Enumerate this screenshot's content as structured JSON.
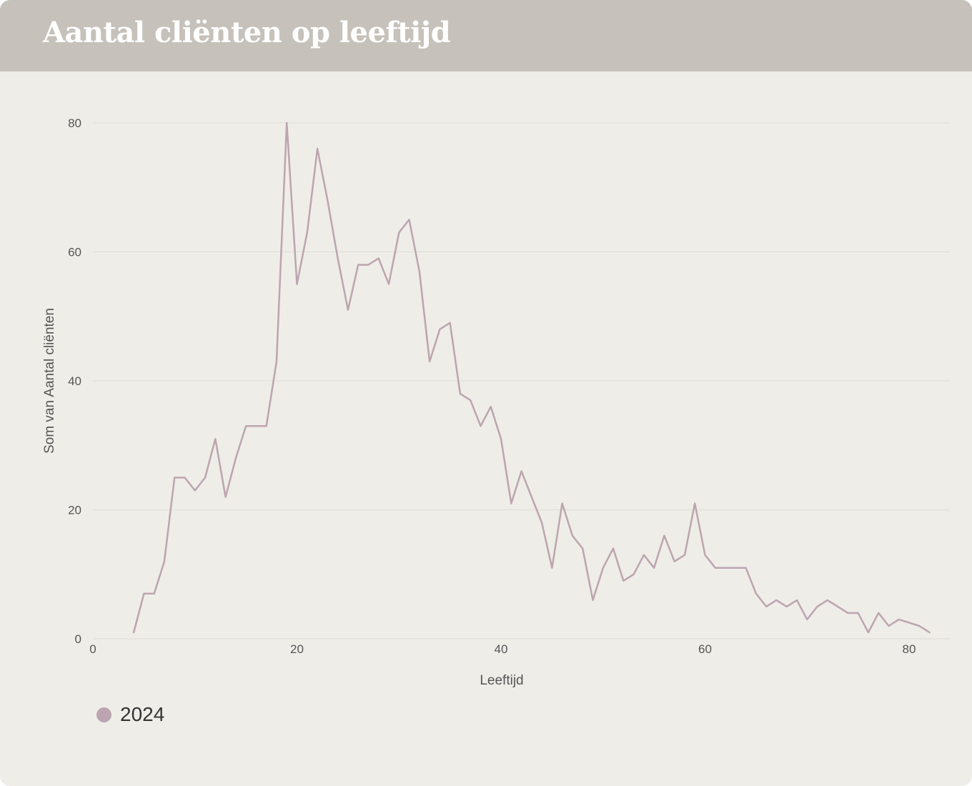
{
  "header": {
    "title": "Aantal cliënten op leeftijd"
  },
  "colors": {
    "header_bg": "#c6c1ba",
    "card_bg": "#efede8",
    "series": "#bca5b0",
    "grid": "#dedbd6",
    "axis_text": "#555555"
  },
  "chart_data": {
    "type": "line",
    "title": "",
    "xlabel": "Leeftijd",
    "ylabel": "Som van Aantal cliënten",
    "xlim": [
      0,
      84
    ],
    "ylim": [
      0,
      80
    ],
    "x_ticks": [
      0,
      20,
      40,
      60,
      80
    ],
    "y_ticks": [
      0,
      20,
      40,
      60,
      80
    ],
    "grid": "horizontal",
    "legend_position": "bottom-left",
    "series": [
      {
        "name": "2024",
        "x": [
          4,
          5,
          6,
          7,
          8,
          9,
          10,
          11,
          12,
          13,
          14,
          15,
          16,
          17,
          18,
          19,
          20,
          21,
          22,
          23,
          24,
          25,
          26,
          27,
          28,
          29,
          30,
          31,
          32,
          33,
          34,
          35,
          36,
          37,
          38,
          39,
          40,
          41,
          42,
          43,
          44,
          45,
          46,
          47,
          48,
          49,
          50,
          51,
          52,
          53,
          54,
          55,
          56,
          57,
          58,
          59,
          60,
          61,
          62,
          63,
          64,
          65,
          66,
          67,
          68,
          69,
          70,
          71,
          72,
          73,
          74,
          75,
          76,
          77,
          78,
          79,
          80,
          81,
          82
        ],
        "y": [
          1,
          7,
          7,
          12,
          25,
          25,
          23,
          25,
          31,
          22,
          28,
          33,
          33,
          33,
          43,
          80,
          55,
          63,
          76,
          68,
          59,
          51,
          58,
          58,
          59,
          55,
          63,
          65,
          57,
          43,
          48,
          49,
          38,
          37,
          33,
          36,
          31,
          21,
          26,
          22,
          18,
          11,
          21,
          16,
          14,
          6,
          11,
          14,
          9,
          10,
          13,
          11,
          16,
          12,
          13,
          21,
          13,
          11,
          11,
          11,
          11,
          7,
          5,
          6,
          5,
          6,
          3,
          5,
          6,
          5,
          4,
          4,
          1,
          4,
          2,
          3,
          2.5,
          2,
          1
        ]
      }
    ]
  }
}
